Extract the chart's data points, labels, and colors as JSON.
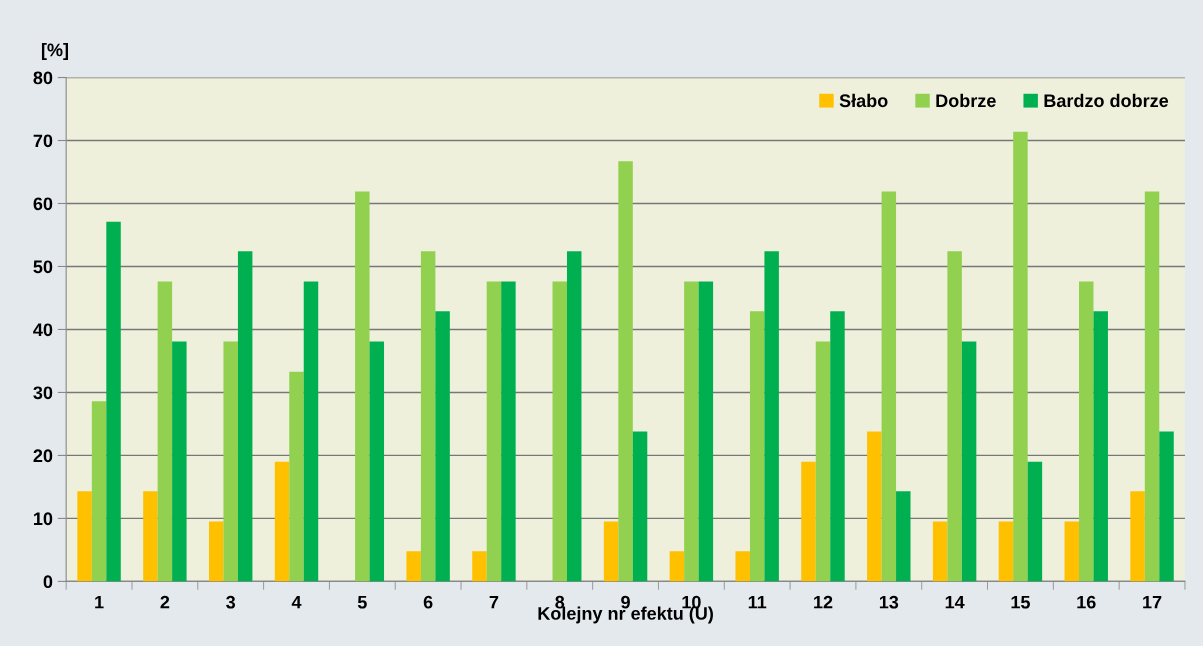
{
  "chart_data": {
    "type": "bar",
    "ylabel": "[%]",
    "xlabel": "Kolejny nr efektu (U)",
    "categories": [
      "1",
      "2",
      "3",
      "4",
      "5",
      "6",
      "7",
      "8",
      "9",
      "10",
      "11",
      "12",
      "13",
      "14",
      "15",
      "16",
      "17"
    ],
    "series": [
      {
        "name": "Słabo",
        "color": "#ffc000",
        "values": [
          14.3,
          14.3,
          9.5,
          19.0,
          0,
          4.8,
          4.8,
          0,
          9.5,
          4.8,
          4.8,
          19.0,
          23.8,
          9.5,
          9.5,
          9.5,
          14.3
        ]
      },
      {
        "name": "Dobrze",
        "color": "#92d050",
        "values": [
          28.6,
          47.6,
          38.1,
          33.3,
          61.9,
          52.4,
          47.6,
          47.6,
          66.7,
          47.6,
          42.9,
          38.1,
          61.9,
          52.4,
          71.4,
          47.6,
          61.9
        ]
      },
      {
        "name": "Bardzo dobrze",
        "color": "#00b050",
        "values": [
          57.1,
          38.1,
          52.4,
          47.6,
          38.1,
          42.9,
          47.6,
          52.4,
          23.8,
          47.6,
          52.4,
          42.9,
          14.3,
          38.1,
          19.0,
          42.9,
          23.8
        ]
      }
    ],
    "ylim": [
      0,
      80
    ],
    "yticks": [
      0,
      10,
      20,
      30,
      40,
      50,
      60,
      70,
      80
    ],
    "grid": "y",
    "legend": "top right"
  }
}
